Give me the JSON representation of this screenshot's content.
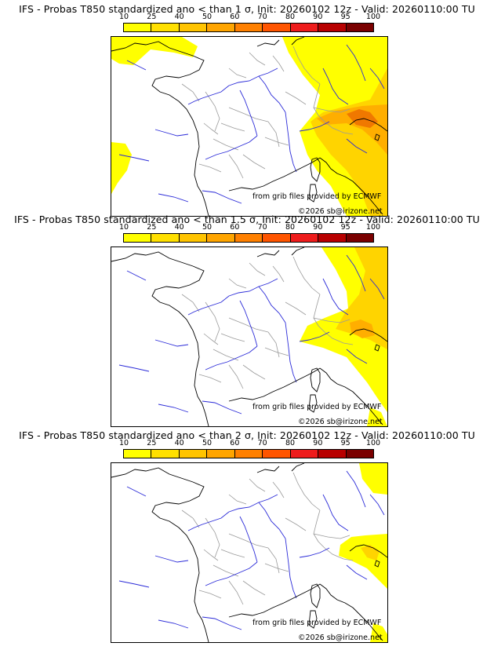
{
  "panels": [
    {
      "title": "IFS - Probas T850  standardized ano < than 1 σ, Init: 20260102 12z - Valid: 20260110:00 TU",
      "source": "from grib files provided by ECMWF",
      "copyright": "©2026 sb@irizone.net"
    },
    {
      "title": "IFS - Probas T850  standardized ano < than 1.5 σ, Init: 20260102 12z - Valid: 20260110:00 TU",
      "source": "from grib files provided by ECMWF",
      "copyright": "©2026 sb@irizone.net"
    },
    {
      "title": "IFS - Probas T850  standardized ano < than 2 σ, Init: 20260102 12z - Valid: 20260110:00 TU",
      "source": "from grib files provided by ECMWF",
      "copyright": "©2026 sb@irizone.net"
    }
  ],
  "legend": {
    "ticks": [
      "10",
      "25",
      "40",
      "50",
      "60",
      "70",
      "80",
      "90",
      "95",
      "100"
    ],
    "colors": [
      "#ffff00",
      "#ffe000",
      "#ffc400",
      "#ffa500",
      "#ff8000",
      "#ff5500",
      "#ee1c1c",
      "#b80000",
      "#7a0000"
    ]
  },
  "map_colors": {
    "yellow": "#ffff00",
    "gold": "#ffd400",
    "orange": "#ffae00",
    "deep_orange": "#f07800",
    "river": "#2a2ad8",
    "border": "#9a9a9a",
    "coast": "#000000"
  }
}
